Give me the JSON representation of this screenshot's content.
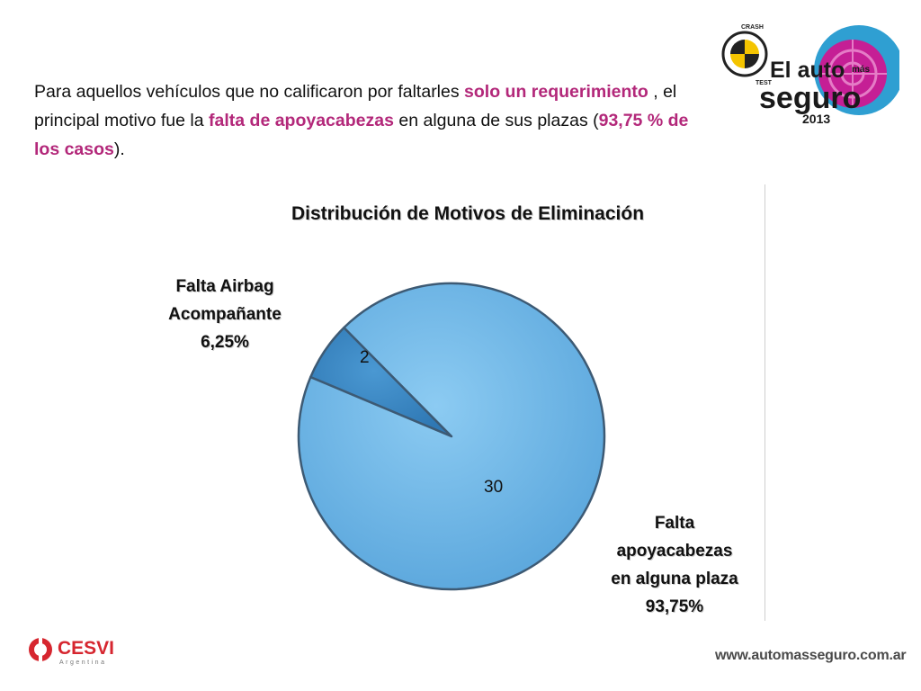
{
  "intro": {
    "t1": "Para aquellos vehículos que no calificaron por faltarles ",
    "h1": "solo un requerimiento",
    "t2": " , el principal motivo fue la ",
    "h2": "falta de apoyacabezas",
    "t3": " en alguna de sus plazas (",
    "h3": "93,75 % de los casos",
    "t4": ")."
  },
  "logo_top": {
    "crash": "CRASH",
    "test": "TEST",
    "line1": "El auto",
    "mas": "más",
    "line2": "seguro",
    "year": "2013"
  },
  "footer": {
    "cesvi_name": "CESVI",
    "cesvi_sub": "Argentina",
    "url": "www.automasseguro.com.ar"
  },
  "colors": {
    "highlight": "#b3287a",
    "slice_main": "#74b9e8",
    "slice_small": "#3a86c2"
  },
  "chart_data": {
    "type": "pie",
    "title": "Distribución de Motivos de Eliminación",
    "categories": [
      {
        "lines": [
          "Falta Airbag",
          "Acompañante",
          "6,25%"
        ]
      },
      {
        "lines": [
          "Falta",
          "apoyacabezas",
          "en alguna plaza",
          "93,75%"
        ]
      }
    ],
    "values": [
      2,
      30
    ],
    "percentages": [
      "6,25%",
      "93,75%"
    ],
    "data_labels": [
      "2",
      "30"
    ],
    "legend": "none",
    "exploded_slice": 0
  }
}
